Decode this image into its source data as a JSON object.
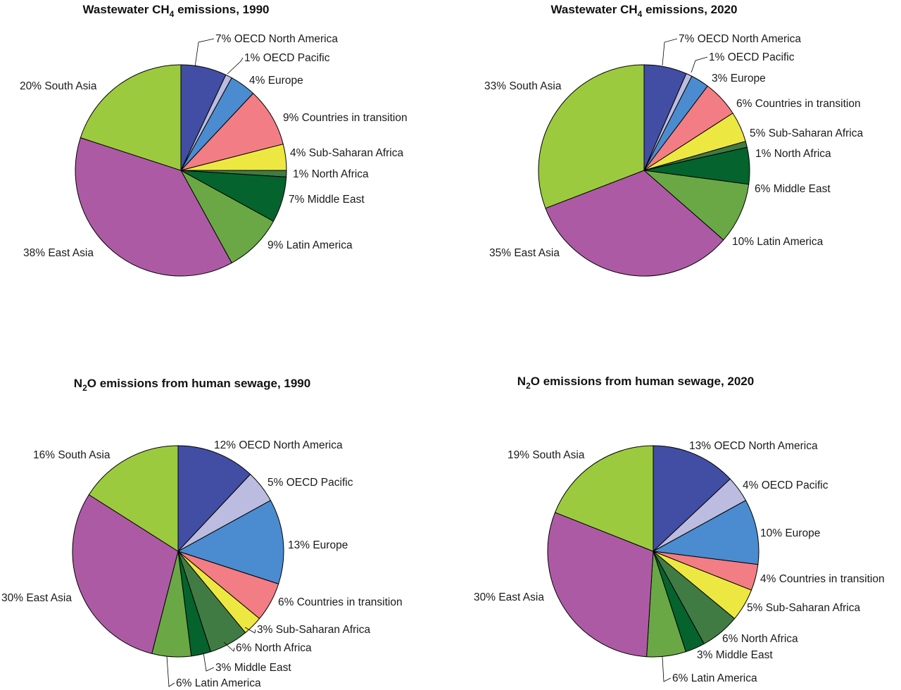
{
  "colors": {
    "OECD North America": "#414ea3",
    "OECD Pacific": "#bcbce0",
    "Europe": "#4a8ccf",
    "Countries in transition": "#f27d84",
    "Sub-Saharan Africa": "#ede841",
    "North Africa": "#417b44",
    "Middle East": "#05632d",
    "Latin America": "#6aa845",
    "East Asia": "#ad5aa5",
    "South Asia": "#9cca3e"
  },
  "chart_data": [
    {
      "type": "pie",
      "title_main": "Wastewater CH",
      "title_sub": "4",
      "title_rest": " emissions, 1990",
      "slices": [
        {
          "label": "7% OECD North America",
          "region": "OECD North America",
          "value": 7
        },
        {
          "label": "1% OECD Pacific",
          "region": "OECD Pacific",
          "value": 1
        },
        {
          "label": "4% Europe",
          "region": "Europe",
          "value": 4
        },
        {
          "label": "9% Countries in transition",
          "region": "Countries in transition",
          "value": 9
        },
        {
          "label": "4% Sub-Saharan Africa",
          "region": "Sub-Saharan Africa",
          "value": 4
        },
        {
          "label": "1% North Africa",
          "region": "North Africa",
          "value": 1
        },
        {
          "label": "7% Middle East",
          "region": "Middle East",
          "value": 7
        },
        {
          "label": "9% Latin America",
          "region": "Latin America",
          "value": 9
        },
        {
          "label": "38% East Asia",
          "region": "East Asia",
          "value": 38
        },
        {
          "label": "20% South Asia",
          "region": "South Asia",
          "value": 20
        }
      ]
    },
    {
      "type": "pie",
      "title_main": "Wastewater CH",
      "title_sub": "4",
      "title_rest": " emissions, 2020",
      "slices": [
        {
          "label": "7% OECD North America",
          "region": "OECD North America",
          "value": 7
        },
        {
          "label": "1% OECD Pacific",
          "region": "OECD Pacific",
          "value": 1
        },
        {
          "label": "3% Europe",
          "region": "Europe",
          "value": 3
        },
        {
          "label": "6% Countries in transition",
          "region": "Countries in transition",
          "value": 6
        },
        {
          "label": "5% Sub-Saharan Africa",
          "region": "Sub-Saharan Africa",
          "value": 5
        },
        {
          "label": "1% North Africa",
          "region": "North Africa",
          "value": 1
        },
        {
          "label": "6% Middle East",
          "region": "Middle East",
          "value": 6
        },
        {
          "label": "10% Latin America",
          "region": "Latin America",
          "value": 10
        },
        {
          "label": "35% East Asia",
          "region": "East Asia",
          "value": 35
        },
        {
          "label": "33% South Asia",
          "region": "South Asia",
          "value": 33
        }
      ]
    },
    {
      "type": "pie",
      "title_main": "N",
      "title_sub": "2",
      "title_rest": "O emissions from human sewage, 1990",
      "slices": [
        {
          "label": "12% OECD North America",
          "region": "OECD North America",
          "value": 12
        },
        {
          "label": "5% OECD Pacific",
          "region": "OECD Pacific",
          "value": 5
        },
        {
          "label": "13% Europe",
          "region": "Europe",
          "value": 13
        },
        {
          "label": "6% Countries in transition",
          "region": "Countries in transition",
          "value": 6
        },
        {
          "label": "3% Sub-Saharan Africa",
          "region": "Sub-Saharan Africa",
          "value": 3
        },
        {
          "label": "6% North Africa",
          "region": "North Africa",
          "value": 6
        },
        {
          "label": "3% Middle East",
          "region": "Middle East",
          "value": 3
        },
        {
          "label": "6% Latin America",
          "region": "Latin America",
          "value": 6
        },
        {
          "label": "30% East Asia",
          "region": "East Asia",
          "value": 30
        },
        {
          "label": "16% South Asia",
          "region": "South Asia",
          "value": 16
        }
      ]
    },
    {
      "type": "pie",
      "title_main": "N",
      "title_sub": "2",
      "title_rest": "O emissions from human sewage, 2020",
      "slices": [
        {
          "label": "13% OECD North America",
          "region": "OECD North America",
          "value": 13
        },
        {
          "label": "4% OECD Pacific",
          "region": "OECD Pacific",
          "value": 4
        },
        {
          "label": "10% Europe",
          "region": "Europe",
          "value": 10
        },
        {
          "label": "4% Countries in transition",
          "region": "Countries in transition",
          "value": 4
        },
        {
          "label": "5% Sub-Saharan Africa",
          "region": "Sub-Saharan Africa",
          "value": 5
        },
        {
          "label": "6% North Africa",
          "region": "North Africa",
          "value": 6
        },
        {
          "label": "3% Middle East",
          "region": "Middle East",
          "value": 3
        },
        {
          "label": "6% Latin America",
          "region": "Latin America",
          "value": 6
        },
        {
          "label": "30% East Asia",
          "region": "East Asia",
          "value": 30
        },
        {
          "label": "19% South Asia",
          "region": "South Asia",
          "value": 19
        }
      ]
    }
  ]
}
